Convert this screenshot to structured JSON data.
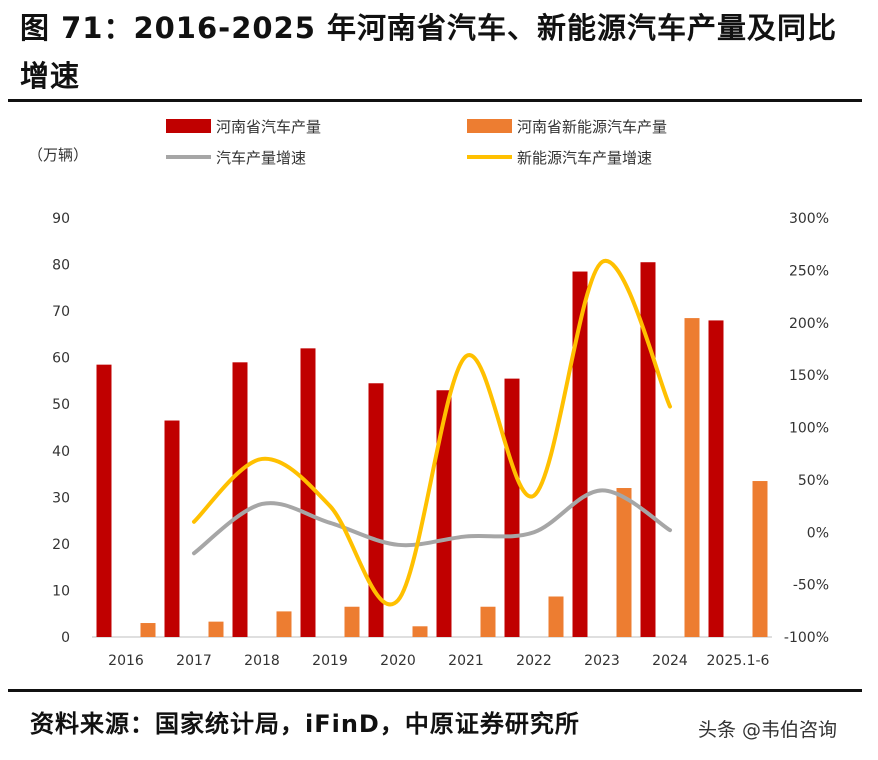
{
  "title": "图 71：2016-2025 年河南省汽车、新能源汽车产量及同比增速",
  "source": "资料来源：国家统计局，iFinD，中原证券研究所",
  "watermark": "头条 @韦伯咨询",
  "colors": {
    "auto_bar": "#C00000",
    "nev_bar": "#ED7D31",
    "auto_growth": "#A6A6A6",
    "nev_growth": "#FFC000"
  },
  "chart_data": {
    "type": "bar",
    "title": "",
    "y_left_label": "（万辆）",
    "ylim_left": [
      0,
      90
    ],
    "ylim_right": [
      -100,
      300
    ],
    "y_left_ticks": [
      "0",
      "10",
      "20",
      "30",
      "40",
      "50",
      "60",
      "70",
      "80",
      "90"
    ],
    "y_right_ticks": [
      "-100%",
      "-50%",
      "0%",
      "50%",
      "100%",
      "150%",
      "200%",
      "250%",
      "300%"
    ],
    "categories": [
      "2016",
      "2017",
      "2018",
      "2019",
      "2020",
      "2021",
      "2022",
      "2023",
      "2024",
      "2025.1-6"
    ],
    "series": [
      {
        "name": "河南省汽车产量",
        "kind": "bar",
        "axis": "left",
        "values": [
          58.5,
          46.5,
          59,
          62,
          54.5,
          53,
          55.5,
          78.5,
          80.5,
          68
        ]
      },
      {
        "name": "河南省新能源汽车产量",
        "kind": "bar",
        "axis": "left",
        "values": [
          3,
          3.3,
          5.5,
          6.5,
          2.3,
          6.5,
          8.7,
          32,
          68.5,
          33.5
        ]
      },
      {
        "name": "汽车产量增速",
        "kind": "line",
        "axis": "right",
        "values": [
          null,
          -20,
          27,
          9,
          -12,
          -4,
          0,
          40,
          2,
          null
        ]
      },
      {
        "name": "新能源汽车产量增速",
        "kind": "line",
        "axis": "right",
        "values": [
          null,
          10,
          70,
          25,
          -65,
          168,
          35,
          258,
          120,
          null
        ]
      }
    ]
  }
}
